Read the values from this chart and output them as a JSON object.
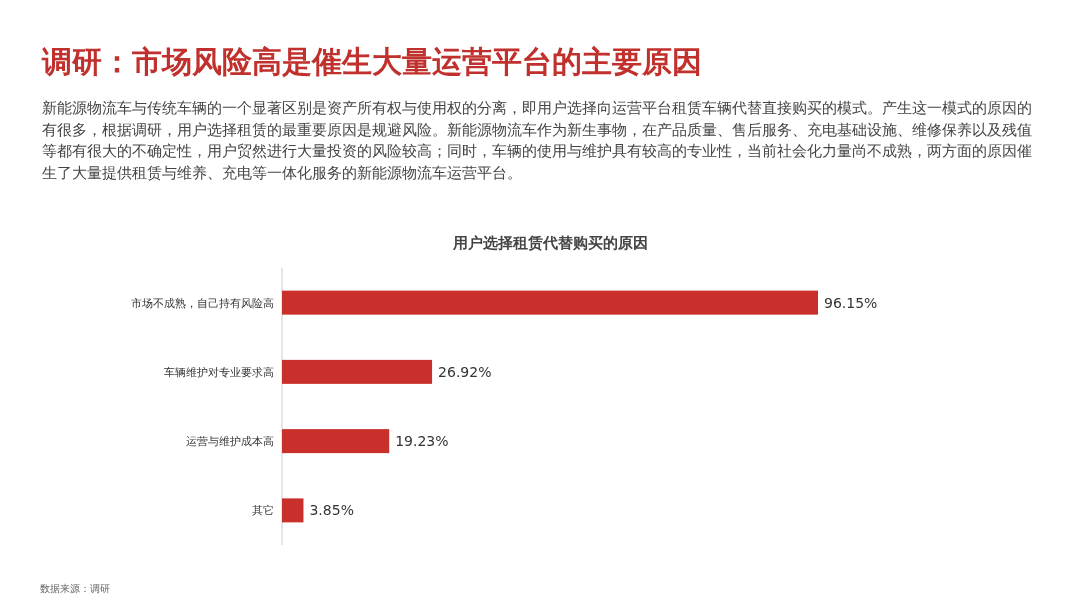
{
  "chart_data": {
    "type": "bar",
    "orientation": "horizontal",
    "title": "调研：市场风险高是催生大量运营平台的主要原因",
    "subtitle": "用户选择租赁代替购买的原因",
    "annotations": [
      "新能源物流车与传统车辆的一个显著区别是资产所有权与使用权的分离，即用户选择向运营平台租赁车辆代替直接购买的模式。产生这一模式的原因的有很多，根据调研，用户选择租赁的最重要原因是规避风险。新能源物流车作为新生事物，在产品质量、售后服务、充电基础设施、维修保养以及残值等都有很大的不确定性，用户贸然进行大量投资的风险较高；同时，车辆的使用与维护具有较高的专业性，当前社会化力量尚不成熟，两方面的原因催生了大量提供租赁与维养、充电等一体化服务的新能源物流车运营平台。",
      "数据来源：调研"
    ],
    "categories": [
      "市场不成熟，自己持有风险高",
      "车辆维护对专业要求高",
      "运营与维护成本高",
      "其它"
    ],
    "values": [
      96.15,
      26.92,
      19.23,
      3.85
    ],
    "value_labels": [
      "96.15%",
      "26.92%",
      "19.23%",
      "3.85%"
    ],
    "color": "#c9302c"
  }
}
